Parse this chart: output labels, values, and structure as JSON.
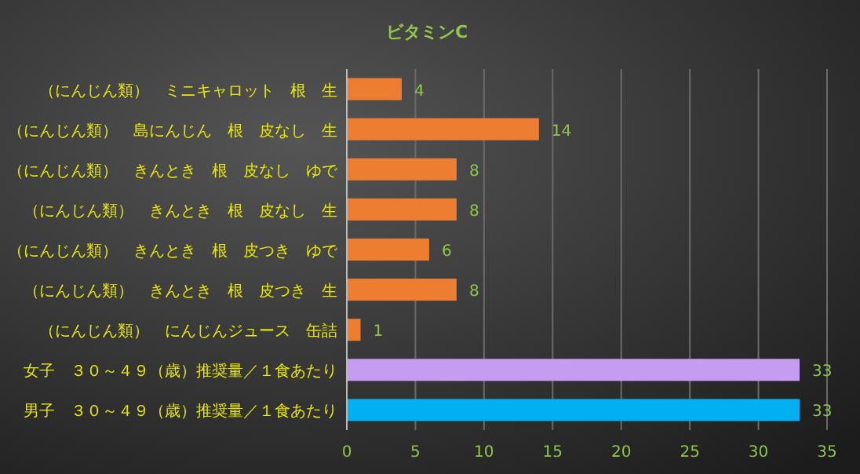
{
  "chart_data": {
    "type": "bar",
    "orientation": "horizontal",
    "title": "ビタミンC",
    "categories": [
      "（にんじん類）　ミニキャロット　根　生",
      "（にんじん類）　島にんじん　根　皮なし　生",
      "（にんじん類）　きんとき　根　皮なし　ゆで",
      "（にんじん類）　きんとき　根　皮なし　生",
      "（にんじん類）　きんとき　根　皮つき　ゆで",
      "（にんじん類）　きんとき　根　皮つき　生",
      "（にんじん類）　にんじんジュース　缶詰",
      "女子　３０～４９（歳）推奨量／１食あたり",
      "男子　３０～４９（歳）推奨量／１食あたり"
    ],
    "values": [
      4,
      14,
      8,
      8,
      6,
      8,
      1,
      33,
      33
    ],
    "colors": [
      "#ed7d31",
      "#ed7d31",
      "#ed7d31",
      "#ed7d31",
      "#ed7d31",
      "#ed7d31",
      "#ed7d31",
      "#c49cf0",
      "#00b0f0"
    ],
    "xlim": [
      0,
      35
    ],
    "xticks": [
      0,
      5,
      10,
      15,
      20,
      25,
      30,
      35
    ],
    "grid": "x",
    "data_labels": true
  }
}
